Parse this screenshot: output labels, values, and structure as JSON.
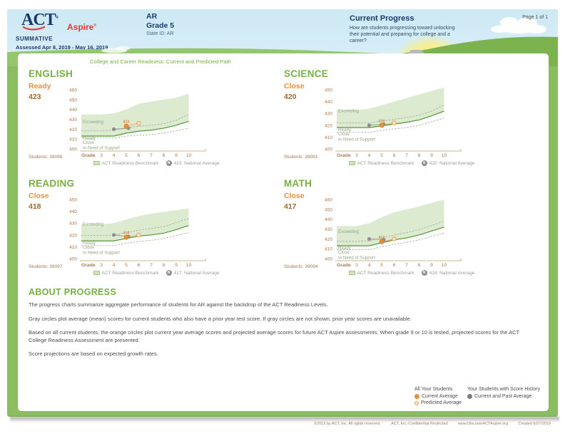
{
  "header": {
    "logo": {
      "act": "ACT",
      "aspire": "Aspire",
      "reg": "®"
    },
    "program": "SUMMATIVE",
    "assessed": "Assessed Apr 8, 2019 - May 16, 2019",
    "org": {
      "name": "AR",
      "grade": "Grade 5",
      "state_id": "State ID: AR"
    },
    "report": {
      "title": "Current Progress",
      "subtitle": "How are students progressing toward unlocking their potential and preparing for college and a career?",
      "page": "Page 1 of 1"
    }
  },
  "chart_section_title": "College and Career Readiness: Current and Predicted Path",
  "chart_legend": {
    "benchmark": "ACT Readiness Benchmark",
    "national_icon": "N"
  },
  "chart_data": [
    {
      "type": "line",
      "subject": "ENGLISH",
      "status": "Ready",
      "score": "423",
      "students_label": "Students: 39096",
      "national_label": "423: National Average",
      "x_label": "Grade",
      "grades": [
        3,
        4,
        5,
        6,
        7,
        8,
        9,
        10
      ],
      "yticks": [
        460,
        450,
        440,
        430,
        420,
        410,
        400
      ],
      "zones": [
        "Exceeding",
        "Ready",
        "Close",
        "In Need of Support"
      ],
      "benchmark_band_top": [
        435,
        436,
        440,
        446,
        448,
        450,
        452,
        456
      ],
      "ready_benchmark_line": [
        413,
        413,
        416,
        418,
        419,
        421,
        424,
        428
      ],
      "exceeding_dashed_line": [
        418.5,
        419,
        421.5,
        423,
        424,
        425.5,
        429,
        435
      ],
      "close_dashed_line": [
        411,
        411,
        413,
        414,
        414.5,
        416,
        418.5,
        421
      ],
      "history_points": [
        [
          4,
          420
        ],
        [
          5,
          421
        ]
      ],
      "current_point": [
        5,
        423
      ],
      "current_label": "423",
      "predicted_point": [
        6,
        426
      ]
    },
    {
      "type": "line",
      "subject": "SCIENCE",
      "status": "Close",
      "score": "420",
      "students_label": "Students: 39091",
      "national_label": "420: National Average",
      "x_label": "Grade",
      "grades": [
        3,
        4,
        5,
        6,
        7,
        8,
        9,
        10
      ],
      "yticks": [
        450,
        440,
        430,
        420,
        410,
        400
      ],
      "zones": [
        "Exceeding",
        "Ready",
        "Close",
        "In Need of Support"
      ],
      "benchmark_band_top": [
        433,
        434,
        437,
        440,
        443,
        446,
        449,
        452
      ],
      "ready_benchmark_line": [
        418,
        418,
        419.5,
        421,
        422.5,
        424.5,
        428,
        432
      ],
      "exceeding_dashed_line": [
        422,
        422,
        423.5,
        425,
        426.5,
        428.5,
        432,
        437
      ],
      "close_dashed_line": [
        414,
        414,
        415.5,
        417,
        418,
        420,
        423,
        426
      ],
      "history_points": [
        [
          4,
          420
        ],
        [
          5,
          420.8
        ]
      ],
      "current_point": [
        5,
        420
      ],
      "current_label": "420",
      "predicted_point": [
        6,
        422
      ]
    },
    {
      "type": "line",
      "subject": "READING",
      "status": "Close",
      "score": "418",
      "students_label": "Students: 39097",
      "national_label": "417: National Average",
      "x_label": "Grade",
      "grades": [
        3,
        4,
        5,
        6,
        7,
        8,
        9,
        10
      ],
      "yticks": [
        450,
        440,
        430,
        420,
        410,
        400
      ],
      "zones": [
        "Exceeding",
        "Ready",
        "Close",
        "In Need of Support"
      ],
      "benchmark_band_top": [
        429,
        430,
        433,
        436,
        438,
        439.5,
        441,
        442.5
      ],
      "ready_benchmark_line": [
        415,
        415,
        417,
        419,
        420,
        421.5,
        424.5,
        428
      ],
      "exceeding_dashed_line": [
        419.5,
        420,
        422,
        424,
        425.5,
        427,
        430.5,
        434
      ],
      "close_dashed_line": [
        411,
        411,
        413,
        414.5,
        415.5,
        417,
        419.5,
        422
      ],
      "history_points": [
        [
          4,
          420
        ],
        [
          5,
          418.6
        ]
      ],
      "current_point": [
        5,
        418
      ],
      "current_label": "418",
      "predicted_point": [
        6,
        420
      ]
    },
    {
      "type": "line",
      "subject": "MATH",
      "status": "Close",
      "score": "417",
      "students_label": "Students: 39094",
      "national_label": "418: National Average",
      "x_label": "Grade",
      "grades": [
        3,
        4,
        5,
        6,
        7,
        8,
        9,
        10
      ],
      "yticks": [
        460,
        450,
        440,
        430,
        420,
        410,
        400
      ],
      "zones": [
        "Exceeding",
        "Ready",
        "Close",
        "In Need of Support"
      ],
      "benchmark_band_top": [
        433,
        436,
        442,
        447,
        450,
        453,
        456.5,
        460
      ],
      "ready_benchmark_line": [
        413,
        413,
        416,
        419,
        421,
        424,
        428,
        432
      ],
      "exceeding_dashed_line": [
        417.5,
        418,
        421,
        424,
        426.5,
        429.5,
        433.5,
        438
      ],
      "close_dashed_line": [
        409,
        409,
        412,
        414.5,
        416.5,
        419,
        422.5,
        426
      ],
      "history_points": [
        [
          4,
          420
        ],
        [
          5,
          419.3
        ]
      ],
      "current_point": [
        5,
        417
      ],
      "current_label": "417",
      "predicted_point": [
        6,
        420
      ]
    }
  ],
  "about": {
    "title": "ABOUT PROGRESS",
    "paragraphs": [
      "The progress charts summarize aggregate performance of students for AR against the backdrop of the ACT Readiness Levels.",
      "Gray circles plot average (mean) scores for current students who also have a prior year test score. If gray circles are not shown, prior year scores are unavailable.",
      "Based on all current students, the orange circles plot current year average scores and projected average scores for future ACT Aspire assessments. When grade 9 or 10 is tested, projected scores for the ACT College Readiness Assessment are presented.",
      "Score projections are based on expected growth rates."
    ]
  },
  "score_legend": {
    "all_students": {
      "title": "All Your Students",
      "items": [
        {
          "label": "Current Average",
          "type": "current"
        },
        {
          "label": "Predicted Average",
          "type": "predicted"
        }
      ]
    },
    "history": {
      "title": "Your Students with Score History",
      "items": [
        {
          "label": "Current and Past Average",
          "type": "gray"
        }
      ]
    }
  },
  "footer": {
    "copyright": "©2019 by ACT, Inc. All rights reserved.",
    "confidential": "ACT, Inc.-Confidential Restricted",
    "website": "www.DiscoverACTAspire.org",
    "created": "Created 6/27/2019"
  },
  "colors": {
    "accent_green": "#76b043",
    "accent_orange": "#e8913b",
    "score_brown": "#9b6a32",
    "navy": "#1b3a6b",
    "brand_red": "#e03c31",
    "band_green": "#dcead0",
    "benchmark_line": "#4f9834",
    "sky_blue": "#cde9f4",
    "grass_green": "#89bd5f"
  }
}
